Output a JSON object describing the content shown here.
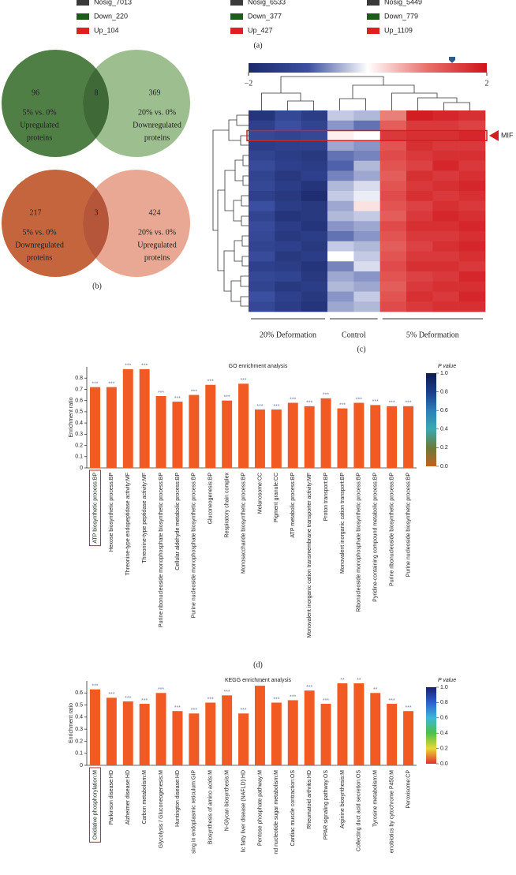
{
  "panel_labels": [
    "(a)",
    "(b)",
    "(c)",
    "(d)"
  ],
  "legends": [
    {
      "items": [
        {
          "label": "Nosig_7013",
          "color": "#3a3a3a"
        },
        {
          "label": "Down_220",
          "color": "#1f5a1f"
        },
        {
          "label": "Up_104",
          "color": "#e02020"
        }
      ]
    },
    {
      "items": [
        {
          "label": "Nosig_6533",
          "color": "#3a3a3a"
        },
        {
          "label": "Down_377",
          "color": "#1f5a1f"
        },
        {
          "label": "Up_427",
          "color": "#e02020"
        }
      ]
    },
    {
      "items": [
        {
          "label": "Nosig_5449",
          "color": "#3a3a3a"
        },
        {
          "label": "Down_779",
          "color": "#1f5a1f"
        },
        {
          "label": "Up_1109",
          "color": "#e02020"
        }
      ]
    }
  ],
  "venn": [
    {
      "left": {
        "count": 96,
        "lines": [
          "5% vs. 0%",
          "Upregulated",
          "proteins"
        ],
        "color": "#4f7f45"
      },
      "overlap": 8,
      "overlap_color": "#3f6a38",
      "right": {
        "count": 369,
        "lines": [
          "20% vs. 0%",
          "Downregulated",
          "proteins"
        ],
        "color": "#9dbf90"
      }
    },
    {
      "left": {
        "count": 217,
        "lines": [
          "5% vs. 0%",
          "Downregulated",
          "proteins"
        ],
        "color": "#c4653d"
      },
      "overlap": 3,
      "overlap_color": "#b5553a",
      "right": {
        "count": 424,
        "lines": [
          "20% vs. 0%",
          "Upregulated",
          "proteins"
        ],
        "color": "#e9a893"
      }
    }
  ],
  "heatmap": {
    "colorbar_ticks": [
      {
        "value": -2,
        "label": "−2"
      },
      2
    ],
    "clim": [
      -2,
      2
    ],
    "column_groups": [
      {
        "label": "20% Deformation",
        "size": 3
      },
      {
        "label": "Control",
        "size": 2
      },
      {
        "label": "5% Deformation",
        "size": 4
      }
    ],
    "row_labels": [
      null,
      null,
      "MIF",
      null,
      null,
      null,
      null,
      null,
      null,
      null,
      null,
      null,
      null,
      null,
      null,
      null,
      null,
      null,
      null,
      null
    ],
    "values": [
      [
        -1.7,
        -1.2,
        -1.5,
        -0.3,
        -0.4,
        0.9,
        1.9,
        1.8,
        1.7
      ],
      [
        -1.4,
        -1.0,
        -1.3,
        -0.6,
        -0.8,
        1.2,
        1.6,
        1.6,
        1.5
      ],
      [
        -1.2,
        -1.3,
        -1.2,
        0.1,
        0.0,
        1.6,
        1.7,
        1.7,
        1.8
      ],
      [
        -1.5,
        -1.4,
        -1.4,
        -0.5,
        -0.6,
        1.3,
        1.7,
        1.6,
        1.6
      ],
      [
        -1.3,
        -1.5,
        -1.6,
        -0.8,
        -0.7,
        1.4,
        1.6,
        1.7,
        1.7
      ],
      [
        -1.1,
        -1.4,
        -1.5,
        -0.9,
        -0.4,
        1.3,
        1.5,
        1.8,
        1.6
      ],
      [
        -1.3,
        -1.6,
        -1.4,
        -0.7,
        -0.5,
        1.2,
        1.7,
        1.6,
        1.7
      ],
      [
        -1.2,
        -1.5,
        -1.7,
        -0.4,
        -0.2,
        1.3,
        1.6,
        1.7,
        1.8
      ],
      [
        -1.4,
        -1.6,
        -1.9,
        -0.3,
        -0.1,
        1.4,
        1.7,
        1.6,
        1.7
      ],
      [
        -1.0,
        -1.5,
        -1.6,
        -0.5,
        0.2,
        1.3,
        1.5,
        1.7,
        1.6
      ],
      [
        -1.3,
        -1.7,
        -1.6,
        -0.4,
        -0.3,
        1.2,
        1.6,
        1.8,
        1.7
      ],
      [
        -1.1,
        -1.5,
        -1.7,
        -0.6,
        -0.5,
        1.4,
        1.7,
        1.7,
        1.8
      ],
      [
        -1.2,
        -1.6,
        -1.5,
        -0.8,
        -0.6,
        1.3,
        1.6,
        1.6,
        1.7
      ],
      [
        -1.3,
        -1.4,
        -1.6,
        -0.3,
        -0.4,
        1.2,
        1.5,
        1.7,
        1.8
      ],
      [
        -1.1,
        -1.6,
        -1.5,
        0.0,
        -0.3,
        1.3,
        1.6,
        1.6,
        1.7
      ],
      [
        -1.4,
        -1.5,
        -1.7,
        -0.7,
        -0.2,
        1.4,
        1.7,
        1.7,
        1.6
      ],
      [
        -1.2,
        -1.3,
        -1.6,
        -0.5,
        -0.6,
        1.3,
        1.5,
        1.6,
        1.8
      ],
      [
        -1.3,
        -1.6,
        -1.5,
        -0.4,
        -0.5,
        1.2,
        1.6,
        1.7,
        1.7
      ],
      [
        -1.0,
        -1.4,
        -1.6,
        -0.6,
        -0.3,
        1.3,
        1.7,
        1.6,
        1.8
      ],
      [
        -1.2,
        -1.5,
        -1.7,
        -0.5,
        -0.4,
        1.4,
        1.6,
        1.7,
        1.7
      ]
    ]
  },
  "chart_data": [
    {
      "type": "bar",
      "title": "GO enrichment analysis",
      "y_label": "Enrichment ratio",
      "color": "#f15a22",
      "categories": [
        "ATP biosynthetic process:BP",
        "Hexose biosynthetic process:BP",
        "Threonine-type endopeptidase activity:MF",
        "Threonine-type peptidase activity:MF",
        "Purine ribonucleoside monophosphate biosynthetic process:BP",
        "Cellular aldehyde metabolic process:BP",
        "Purine nucleoside monophosphate biosynthetic process:BP",
        "Gluconeogenesis:BP",
        "Respiratory chain complex",
        "Monosaccharide biosynthetic process:BP",
        "Melanosome:CC",
        "Pigment granule:CC",
        "ATP metabolic process:BP",
        "Monovalent inorganic cation transmembrane transporter activity:MF",
        "Proton transport:BP",
        "Monovalent inorganic cation transport:BP",
        "Ribonucleoside monophosphate biosynthetic process:BP",
        "Pyridine-containing compound metabolic process:BP",
        "Purine ribonucleoside biosynthetic process:BP",
        "Purine nucleoside biosynthetic process:BP"
      ],
      "values": [
        0.72,
        0.72,
        0.88,
        0.88,
        0.64,
        0.59,
        0.65,
        0.74,
        0.6,
        0.75,
        0.52,
        0.52,
        0.58,
        0.55,
        0.62,
        0.53,
        0.58,
        0.56,
        0.55,
        0.55
      ],
      "significance": [
        "***",
        "***",
        "***",
        "***",
        "***",
        "***",
        "***",
        "***",
        "***",
        "***",
        "***",
        "***",
        "***",
        "***",
        "***",
        "***",
        "***",
        "***",
        "***",
        "***"
      ],
      "ylim": [
        0,
        0.9
      ],
      "yticks": [
        0,
        0.1,
        0.2,
        0.3,
        0.4,
        0.5,
        0.6,
        0.7,
        0.8
      ],
      "colorbar": {
        "title": "P value",
        "colors": [
          "#0d1b4c",
          "#1b3c8a",
          "#2a7fb8",
          "#3aa9b0",
          "#6a7a3a",
          "#c2621e"
        ],
        "ticks": [
          {
            "value": 1,
            "label": "1.0"
          },
          0.8,
          0.6,
          0.4,
          0.2,
          {
            "value": 0,
            "label": "0.0"
          }
        ]
      }
    },
    {
      "type": "bar",
      "title": "KEGG enrichment analysis",
      "y_label": "Enrichment ratio",
      "color": "#f15a22",
      "categories": [
        "Oxidative phosphorylation:M",
        "Parkinson disease:HD",
        "Alzheimer disease:HD",
        "Carbon metabolism:M",
        "Glycolysis / Gluconeogenesis:M",
        "Huntington disease:HD",
        "sing in endoplasmic reticulum:GIP",
        "Biosynthesis of amino acids:M",
        "N-Glycan biosynthesis:M",
        "lic fatty liver disease (NAFLD):HD",
        "Pentose phosphate pathway:M",
        "nd nucleotide sugar metabolism:M",
        "Cardiac muscle contraction:OS",
        "Rheumatoid arthritis:HD",
        "PPAR signaling pathway:OS",
        "Arginine biosynthesis:M",
        "Collecting duct acid secretion:OS",
        "Tyrosine metabolism:M",
        "enobiotics by cytochrome P450:M",
        "Peroxisome:CP"
      ],
      "values": [
        0.63,
        0.56,
        0.53,
        0.51,
        0.6,
        0.45,
        0.43,
        0.52,
        0.58,
        0.43,
        0.66,
        0.52,
        0.54,
        0.62,
        0.51,
        0.68,
        0.68,
        0.6,
        0.51,
        0.45
      ],
      "significance": [
        "***",
        "***",
        "***",
        "***",
        "***",
        "***",
        "***",
        "***",
        "***",
        "***",
        "***",
        "***",
        "***",
        "***",
        "***",
        "**",
        "**",
        "**",
        "***",
        "***"
      ],
      "ylim": [
        0,
        0.7
      ],
      "yticks": [
        0,
        0.1,
        0.2,
        0.3,
        0.4,
        0.5,
        0.6
      ],
      "colorbar": {
        "title": "P value",
        "colors": [
          "#1a1f6e",
          "#2c5fd0",
          "#3cb8d8",
          "#4cc04a",
          "#e8d832",
          "#e03030"
        ],
        "ticks": [
          {
            "value": 1,
            "label": "1.0"
          },
          0.8,
          0.6,
          0.4,
          0.2,
          {
            "value": 0,
            "label": "0.0"
          }
        ]
      }
    }
  ]
}
